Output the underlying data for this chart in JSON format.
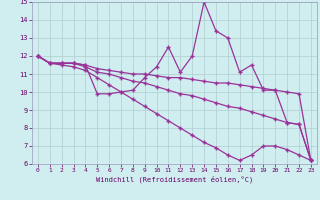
{
  "x": [
    0,
    1,
    2,
    3,
    4,
    5,
    6,
    7,
    8,
    9,
    10,
    11,
    12,
    13,
    14,
    15,
    16,
    17,
    18,
    19,
    20,
    21,
    22,
    23
  ],
  "line1": [
    12.0,
    11.6,
    11.6,
    11.6,
    11.5,
    9.9,
    9.9,
    10.0,
    10.1,
    10.8,
    11.4,
    12.5,
    11.1,
    12.0,
    15.0,
    13.4,
    13.0,
    11.1,
    11.5,
    10.1,
    10.1,
    8.3,
    8.2,
    6.2
  ],
  "line2": [
    12.0,
    11.6,
    11.6,
    11.6,
    11.5,
    11.3,
    11.2,
    11.1,
    11.0,
    11.0,
    10.9,
    10.8,
    10.8,
    10.7,
    10.6,
    10.5,
    10.5,
    10.4,
    10.3,
    10.2,
    10.1,
    10.0,
    9.9,
    6.2
  ],
  "line3": [
    12.0,
    11.6,
    11.6,
    11.6,
    11.4,
    11.1,
    11.0,
    10.8,
    10.6,
    10.5,
    10.3,
    10.1,
    9.9,
    9.8,
    9.6,
    9.4,
    9.2,
    9.1,
    8.9,
    8.7,
    8.5,
    8.3,
    8.2,
    6.2
  ],
  "line4": [
    12.0,
    11.6,
    11.5,
    11.4,
    11.2,
    10.8,
    10.4,
    10.0,
    9.6,
    9.2,
    8.8,
    8.4,
    8.0,
    7.6,
    7.2,
    6.9,
    6.5,
    6.2,
    6.5,
    7.0,
    7.0,
    6.8,
    6.5,
    6.2
  ],
  "line_color": "#993399",
  "bg_color": "#d0eef0",
  "grid_color": "#b0ccd0",
  "xlabel": "Windchill (Refroidissement éolien,°C)",
  "ylim": [
    6,
    15
  ],
  "xlim": [
    -0.5,
    23.5
  ],
  "yticks": [
    6,
    7,
    8,
    9,
    10,
    11,
    12,
    13,
    14,
    15
  ],
  "xticks": [
    0,
    1,
    2,
    3,
    4,
    5,
    6,
    7,
    8,
    9,
    10,
    11,
    12,
    13,
    14,
    15,
    16,
    17,
    18,
    19,
    20,
    21,
    22,
    23
  ]
}
